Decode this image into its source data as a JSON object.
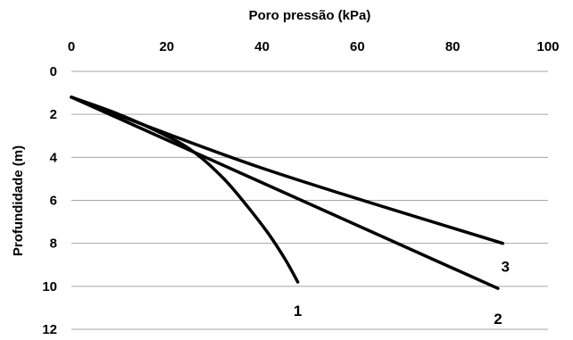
{
  "chart_data": {
    "type": "line",
    "title": "",
    "xlabel": "Poro pressão (kPa)",
    "ylabel": "Profundidade (m)",
    "xlim": [
      0,
      100
    ],
    "ylim": [
      0,
      12
    ],
    "y_inverted": true,
    "x_axis_position": "top",
    "x_ticks": [
      0,
      20,
      40,
      60,
      80,
      100
    ],
    "y_ticks": [
      0,
      2,
      4,
      6,
      8,
      10,
      12
    ],
    "x_tick_labels": [
      "0",
      "20",
      "40",
      "60",
      "80",
      "100"
    ],
    "y_tick_labels": [
      "0",
      "2",
      "4",
      "6",
      "8",
      "10",
      "12"
    ],
    "grid": "horizontal",
    "colors": {
      "line": "#000000",
      "grid": "#a6a6a6"
    },
    "series": [
      {
        "label": "1",
        "points": [
          [
            0,
            1.2
          ],
          [
            10,
            2.0
          ],
          [
            20,
            3.0
          ],
          [
            26,
            3.8
          ],
          [
            32,
            5.0
          ],
          [
            37,
            6.3
          ],
          [
            41.5,
            7.6
          ],
          [
            45,
            8.8
          ],
          [
            47.5,
            9.8
          ]
        ]
      },
      {
        "label": "2",
        "points": [
          [
            0,
            1.2
          ],
          [
            89.5,
            10.1
          ]
        ]
      },
      {
        "label": "3",
        "points": [
          [
            0,
            1.2
          ],
          [
            40,
            4.5
          ],
          [
            90.5,
            8.0
          ]
        ]
      }
    ]
  }
}
